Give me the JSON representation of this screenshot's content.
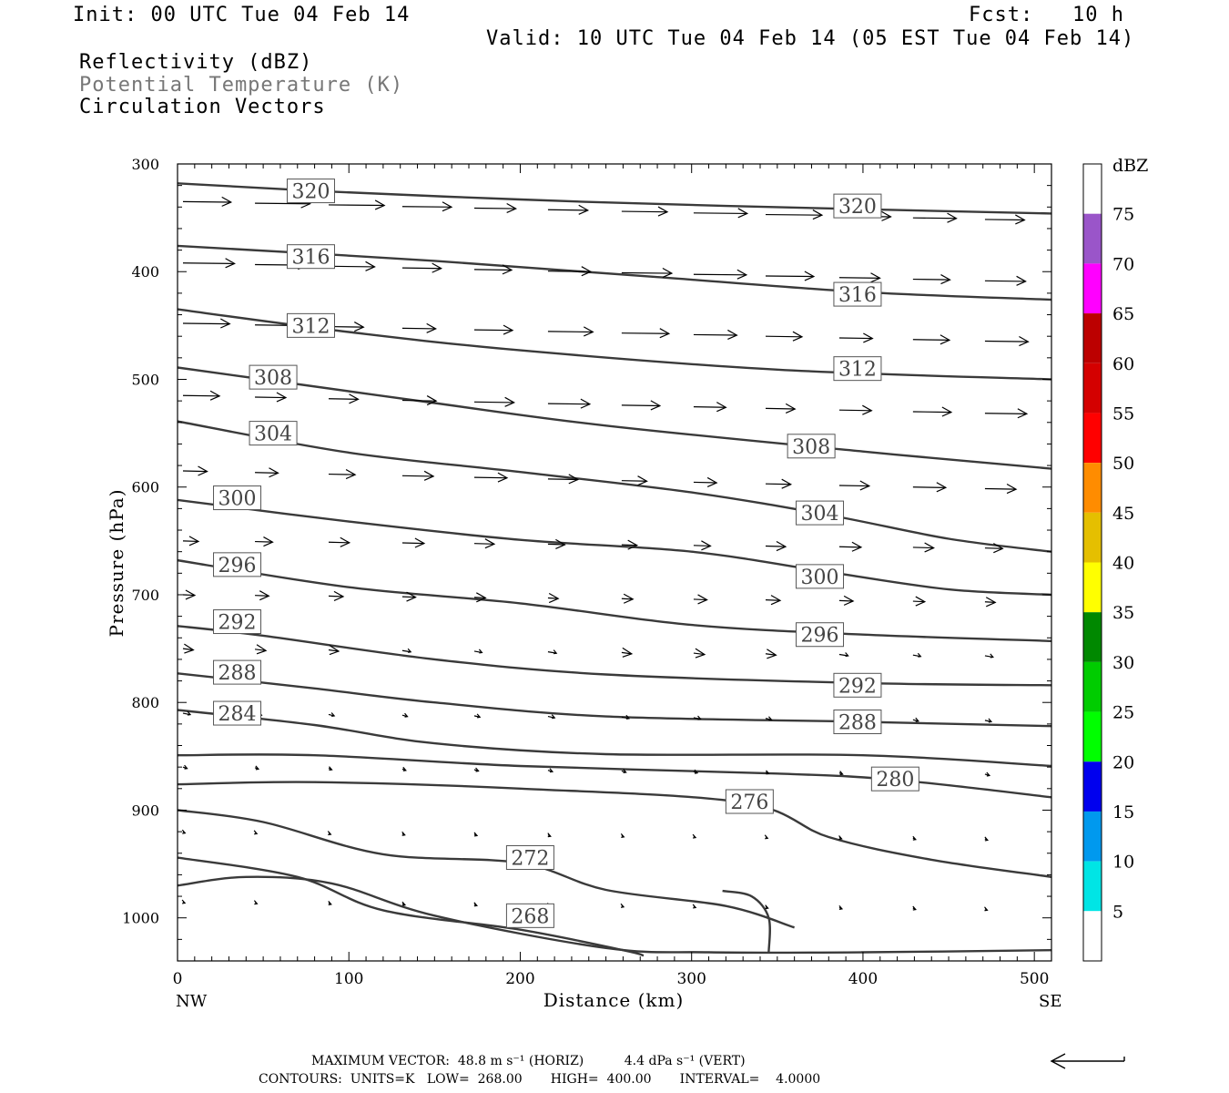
{
  "header": {
    "init": "Init: 00 UTC Tue 04 Feb 14",
    "fcst": "Fcst:   10 h",
    "valid": "Valid: 10 UTC Tue 04 Feb 14 (05 EST Tue 04 Feb 14)",
    "fields": [
      "Reflectivity (dBZ)",
      "Potential Temperature (K)",
      "Circulation Vectors"
    ]
  },
  "footer": {
    "vector_line": "MAXIMUM VECTOR:  48.8 m s⁻¹ (HORIZ)          4.4 dPa s⁻¹ (VERT)",
    "contour_line": "CONTOURS:  UNITS=K   LOW=  268.00       HIGH=  400.00       INTERVAL=    4.0000"
  },
  "colors": {
    "contour": "#3a3a3a",
    "vector": "#000000"
  },
  "chart_data": {
    "type": "contour-cross-section",
    "xlabel": "Distance (km)",
    "ylabel": "Pressure (hPa)",
    "xlim": [
      0,
      510
    ],
    "ylim": [
      300,
      1040
    ],
    "y_reversed": true,
    "x_ticks": [
      0,
      100,
      200,
      300,
      400,
      500
    ],
    "y_ticks": [
      300,
      400,
      500,
      600,
      700,
      800,
      900,
      1000
    ],
    "x_end_labels": {
      "left": "NW",
      "right": "SE"
    },
    "colorbar": {
      "unit": "dBZ",
      "levels": [
        5,
        10,
        15,
        20,
        25,
        30,
        35,
        40,
        45,
        50,
        55,
        60,
        65,
        70,
        75
      ],
      "colors": [
        "#ffffff",
        "#00e5e5",
        "#0099ee",
        "#0000ee",
        "#00ff00",
        "#00cc00",
        "#008800",
        "#ffff00",
        "#e5bf00",
        "#ff8c00",
        "#ff0000",
        "#d40000",
        "#bc0000",
        "#ff00ff",
        "#9a55c9",
        "#ffffff"
      ]
    },
    "theta_contours": [
      {
        "label": "320",
        "points": [
          [
            0,
            318
          ],
          [
            80,
            325
          ],
          [
            200,
            333
          ],
          [
            320,
            339
          ],
          [
            510,
            346
          ]
        ],
        "labels_at": [
          [
            64,
            325
          ],
          [
            383,
            339
          ]
        ]
      },
      {
        "label": "316",
        "points": [
          [
            0,
            376
          ],
          [
            150,
            390
          ],
          [
            280,
            405
          ],
          [
            400,
            419
          ],
          [
            510,
            426
          ]
        ],
        "labels_at": [
          [
            64,
            386
          ],
          [
            383,
            421
          ]
        ]
      },
      {
        "label": "312",
        "points": [
          [
            0,
            435
          ],
          [
            100,
            456
          ],
          [
            200,
            473
          ],
          [
            350,
            491
          ],
          [
            510,
            500
          ]
        ],
        "labels_at": [
          [
            64,
            450
          ],
          [
            383,
            490
          ]
        ]
      },
      {
        "label": "308",
        "points": [
          [
            0,
            489
          ],
          [
            50,
            500
          ],
          [
            150,
            522
          ],
          [
            250,
            543
          ],
          [
            400,
            567
          ],
          [
            510,
            583
          ]
        ],
        "labels_at": [
          [
            42,
            498
          ],
          [
            356,
            562
          ]
        ]
      },
      {
        "label": "304",
        "points": [
          [
            0,
            539
          ],
          [
            100,
            568
          ],
          [
            200,
            586
          ],
          [
            300,
            605
          ],
          [
            380,
            626
          ],
          [
            450,
            648
          ],
          [
            510,
            660
          ]
        ],
        "labels_at": [
          [
            42,
            550
          ],
          [
            361,
            624
          ]
        ]
      },
      {
        "label": "300",
        "points": [
          [
            0,
            612
          ],
          [
            100,
            632
          ],
          [
            200,
            649
          ],
          [
            300,
            660
          ],
          [
            380,
            679
          ],
          [
            450,
            695
          ],
          [
            510,
            700
          ]
        ],
        "labels_at": [
          [
            21,
            610
          ],
          [
            361,
            683
          ]
        ]
      },
      {
        "label": "296",
        "points": [
          [
            0,
            668
          ],
          [
            100,
            693
          ],
          [
            200,
            708
          ],
          [
            300,
            728
          ],
          [
            400,
            737
          ],
          [
            510,
            743
          ]
        ],
        "labels_at": [
          [
            21,
            672
          ],
          [
            361,
            737
          ]
        ]
      },
      {
        "label": "292",
        "points": [
          [
            0,
            729
          ],
          [
            50,
            738
          ],
          [
            150,
            760
          ],
          [
            250,
            774
          ],
          [
            400,
            782
          ],
          [
            510,
            784
          ]
        ],
        "labels_at": [
          [
            21,
            725
          ],
          [
            383,
            784
          ]
        ]
      },
      {
        "label": "288",
        "points": [
          [
            0,
            773
          ],
          [
            80,
            787
          ],
          [
            150,
            800
          ],
          [
            250,
            813
          ],
          [
            400,
            818
          ],
          [
            510,
            822
          ]
        ],
        "labels_at": [
          [
            21,
            772
          ],
          [
            383,
            818
          ]
        ]
      },
      {
        "label": "284",
        "points": [
          [
            0,
            807
          ],
          [
            80,
            821
          ],
          [
            150,
            838
          ],
          [
            250,
            848
          ],
          [
            400,
            849
          ],
          [
            510,
            859
          ]
        ],
        "labels_at": [
          [
            21,
            810
          ]
        ]
      },
      {
        "label": "280",
        "points": [
          [
            0,
            849
          ],
          [
            80,
            849
          ],
          [
            200,
            859
          ],
          [
            350,
            866
          ],
          [
            420,
            872
          ],
          [
            510,
            888
          ]
        ],
        "labels_at": [
          [
            405,
            871
          ]
        ]
      },
      {
        "label": "276",
        "points": [
          [
            0,
            876
          ],
          [
            80,
            874
          ],
          [
            200,
            880
          ],
          [
            330,
            893
          ],
          [
            380,
            925
          ],
          [
            440,
            946
          ],
          [
            510,
            962
          ]
        ],
        "labels_at": [
          [
            320,
            892
          ]
        ]
      },
      {
        "label": "272",
        "points": [
          [
            0,
            900
          ],
          [
            50,
            911
          ],
          [
            120,
            941
          ],
          [
            200,
            949
          ],
          [
            250,
            974
          ],
          [
            320,
            989
          ],
          [
            360,
            1009
          ]
        ],
        "labels_at": [
          [
            192,
            944
          ]
        ]
      },
      {
        "label": "268",
        "points": [
          [
            0,
            944
          ],
          [
            70,
            962
          ],
          [
            120,
            993
          ],
          [
            200,
            1011
          ],
          [
            260,
            1030
          ],
          [
            272,
            1035
          ]
        ],
        "labels_at": [
          [
            192,
            998
          ]
        ]
      }
    ],
    "ground": {
      "points": [
        [
          0,
          970
        ],
        [
          40,
          962
        ],
        [
          90,
          968
        ],
        [
          150,
          998
        ],
        [
          250,
          1028
        ],
        [
          310,
          1032
        ],
        [
          400,
          1032
        ],
        [
          510,
          1030
        ]
      ]
    },
    "cold_pool_boundary": {
      "points": [
        [
          345,
          1032
        ],
        [
          345,
          1000
        ],
        [
          335,
          980
        ],
        [
          318,
          975
        ]
      ]
    }
  }
}
